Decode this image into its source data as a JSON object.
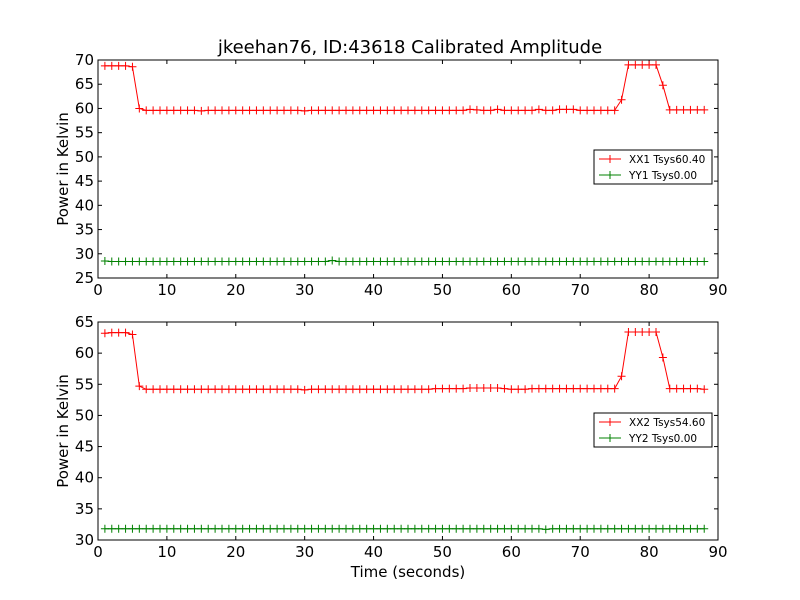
{
  "title": "jkeehan76, ID:43618 Calibrated Amplitude",
  "chart_data": [
    {
      "type": "line",
      "xlabel": "",
      "ylabel": "Power in Kelvin",
      "xlim": [
        0,
        90
      ],
      "ylim": [
        25,
        70
      ],
      "xticks": [
        0,
        10,
        20,
        30,
        40,
        50,
        60,
        70,
        80,
        90
      ],
      "yticks": [
        25,
        30,
        35,
        40,
        45,
        50,
        55,
        60,
        65,
        70
      ],
      "grid": false,
      "legend_position": "center-right",
      "x": [
        1,
        2,
        3,
        4,
        5,
        6,
        7,
        8,
        9,
        10,
        11,
        12,
        13,
        14,
        15,
        16,
        17,
        18,
        19,
        20,
        21,
        22,
        23,
        24,
        25,
        26,
        27,
        28,
        29,
        30,
        31,
        32,
        33,
        34,
        35,
        36,
        37,
        38,
        39,
        40,
        41,
        42,
        43,
        44,
        45,
        46,
        47,
        48,
        49,
        50,
        51,
        52,
        53,
        54,
        55,
        56,
        57,
        58,
        59,
        60,
        61,
        62,
        63,
        64,
        65,
        66,
        67,
        68,
        69,
        70,
        71,
        72,
        73,
        74,
        75,
        76,
        77,
        78,
        79,
        80,
        81,
        82,
        83,
        84,
        85,
        86,
        87,
        88
      ],
      "series": [
        {
          "name": "XX1 Tsys60.40",
          "color": "#ff0000",
          "values": [
            68.8,
            68.8,
            68.8,
            68.8,
            68.6,
            60.0,
            59.6,
            59.6,
            59.6,
            59.6,
            59.6,
            59.6,
            59.6,
            59.6,
            59.5,
            59.6,
            59.6,
            59.6,
            59.6,
            59.6,
            59.6,
            59.6,
            59.6,
            59.6,
            59.6,
            59.6,
            59.6,
            59.6,
            59.6,
            59.5,
            59.6,
            59.6,
            59.6,
            59.6,
            59.6,
            59.6,
            59.6,
            59.6,
            59.6,
            59.6,
            59.6,
            59.6,
            59.6,
            59.6,
            59.6,
            59.6,
            59.6,
            59.6,
            59.6,
            59.6,
            59.6,
            59.6,
            59.6,
            59.8,
            59.7,
            59.6,
            59.6,
            59.8,
            59.6,
            59.6,
            59.6,
            59.6,
            59.6,
            59.8,
            59.6,
            59.6,
            59.8,
            59.8,
            59.8,
            59.6,
            59.6,
            59.6,
            59.6,
            59.6,
            59.6,
            61.8,
            69.0,
            69.0,
            69.0,
            69.0,
            69.0,
            64.8,
            59.7,
            59.7,
            59.7,
            59.7,
            59.7,
            59.7
          ]
        },
        {
          "name": "YY1 Tsys0.00",
          "color": "#008000",
          "values": [
            28.5,
            28.4,
            28.4,
            28.4,
            28.4,
            28.4,
            28.4,
            28.4,
            28.4,
            28.4,
            28.4,
            28.4,
            28.4,
            28.4,
            28.4,
            28.4,
            28.4,
            28.4,
            28.4,
            28.4,
            28.4,
            28.4,
            28.4,
            28.4,
            28.4,
            28.4,
            28.4,
            28.4,
            28.4,
            28.4,
            28.4,
            28.4,
            28.4,
            28.6,
            28.4,
            28.4,
            28.4,
            28.4,
            28.4,
            28.4,
            28.4,
            28.4,
            28.4,
            28.4,
            28.4,
            28.4,
            28.4,
            28.4,
            28.4,
            28.4,
            28.4,
            28.4,
            28.4,
            28.4,
            28.4,
            28.4,
            28.4,
            28.4,
            28.4,
            28.4,
            28.4,
            28.4,
            28.4,
            28.4,
            28.4,
            28.4,
            28.4,
            28.4,
            28.4,
            28.4,
            28.4,
            28.4,
            28.4,
            28.4,
            28.4,
            28.4,
            28.4,
            28.4,
            28.4,
            28.4,
            28.4,
            28.4,
            28.4,
            28.4,
            28.4,
            28.4,
            28.4,
            28.4
          ]
        }
      ]
    },
    {
      "type": "line",
      "xlabel": "Time (seconds)",
      "ylabel": "Power in Kelvin",
      "xlim": [
        0,
        90
      ],
      "ylim": [
        30,
        65
      ],
      "xticks": [
        0,
        10,
        20,
        30,
        40,
        50,
        60,
        70,
        80,
        90
      ],
      "yticks": [
        30,
        35,
        40,
        45,
        50,
        55,
        60,
        65
      ],
      "grid": false,
      "legend_position": "center-right",
      "x": [
        1,
        2,
        3,
        4,
        5,
        6,
        7,
        8,
        9,
        10,
        11,
        12,
        13,
        14,
        15,
        16,
        17,
        18,
        19,
        20,
        21,
        22,
        23,
        24,
        25,
        26,
        27,
        28,
        29,
        30,
        31,
        32,
        33,
        34,
        35,
        36,
        37,
        38,
        39,
        40,
        41,
        42,
        43,
        44,
        45,
        46,
        47,
        48,
        49,
        50,
        51,
        52,
        53,
        54,
        55,
        56,
        57,
        58,
        59,
        60,
        61,
        62,
        63,
        64,
        65,
        66,
        67,
        68,
        69,
        70,
        71,
        72,
        73,
        74,
        75,
        76,
        77,
        78,
        79,
        80,
        81,
        82,
        83,
        84,
        85,
        86,
        87,
        88
      ],
      "series": [
        {
          "name": "XX2 Tsys54.60",
          "color": "#ff0000",
          "values": [
            63.2,
            63.3,
            63.3,
            63.3,
            63.0,
            54.7,
            54.2,
            54.2,
            54.2,
            54.2,
            54.2,
            54.2,
            54.2,
            54.2,
            54.2,
            54.2,
            54.2,
            54.2,
            54.2,
            54.2,
            54.2,
            54.2,
            54.2,
            54.2,
            54.2,
            54.2,
            54.2,
            54.2,
            54.2,
            54.1,
            54.2,
            54.2,
            54.2,
            54.2,
            54.2,
            54.2,
            54.2,
            54.2,
            54.2,
            54.2,
            54.2,
            54.2,
            54.2,
            54.2,
            54.2,
            54.2,
            54.2,
            54.2,
            54.3,
            54.3,
            54.3,
            54.3,
            54.3,
            54.4,
            54.4,
            54.4,
            54.4,
            54.4,
            54.3,
            54.2,
            54.2,
            54.2,
            54.3,
            54.3,
            54.3,
            54.3,
            54.3,
            54.3,
            54.3,
            54.3,
            54.3,
            54.3,
            54.3,
            54.3,
            54.3,
            56.3,
            63.4,
            63.4,
            63.4,
            63.4,
            63.4,
            59.3,
            54.3,
            54.3,
            54.3,
            54.3,
            54.3,
            54.2
          ]
        },
        {
          "name": "YY2 Tsys0.00",
          "color": "#008000",
          "values": [
            31.8,
            31.8,
            31.8,
            31.8,
            31.8,
            31.8,
            31.8,
            31.8,
            31.8,
            31.8,
            31.8,
            31.8,
            31.8,
            31.8,
            31.8,
            31.8,
            31.8,
            31.8,
            31.8,
            31.8,
            31.8,
            31.8,
            31.8,
            31.8,
            31.8,
            31.8,
            31.8,
            31.8,
            31.8,
            31.8,
            31.8,
            31.8,
            31.8,
            31.8,
            31.8,
            31.8,
            31.8,
            31.8,
            31.8,
            31.8,
            31.8,
            31.8,
            31.8,
            31.8,
            31.8,
            31.8,
            31.8,
            31.8,
            31.8,
            31.8,
            31.8,
            31.8,
            31.8,
            31.8,
            31.8,
            31.8,
            31.8,
            31.8,
            31.8,
            31.8,
            31.8,
            31.8,
            31.8,
            31.8,
            31.7,
            31.8,
            31.8,
            31.8,
            31.8,
            31.8,
            31.8,
            31.8,
            31.8,
            31.8,
            31.8,
            31.8,
            31.8,
            31.8,
            31.8,
            31.8,
            31.8,
            31.8,
            31.8,
            31.8,
            31.8,
            31.8,
            31.8,
            31.8
          ]
        }
      ]
    }
  ]
}
